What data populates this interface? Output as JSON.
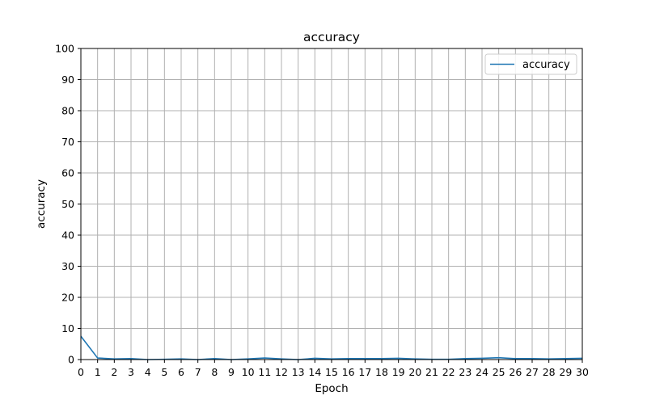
{
  "chart_data": {
    "type": "line",
    "title": "accuracy",
    "xlabel": "Epoch",
    "ylabel": "accuracy",
    "x": [
      0,
      1,
      2,
      3,
      4,
      5,
      6,
      7,
      8,
      9,
      10,
      11,
      12,
      13,
      14,
      15,
      16,
      17,
      18,
      19,
      20,
      21,
      22,
      23,
      24,
      25,
      26,
      27,
      28,
      29,
      30
    ],
    "xlim": [
      0,
      30
    ],
    "ylim": [
      0,
      100
    ],
    "xticks": [
      0,
      1,
      2,
      3,
      4,
      5,
      6,
      7,
      8,
      9,
      10,
      11,
      12,
      13,
      14,
      15,
      16,
      17,
      18,
      19,
      20,
      21,
      22,
      23,
      24,
      25,
      26,
      27,
      28,
      29,
      30
    ],
    "yticks": [
      0,
      10,
      20,
      30,
      40,
      50,
      60,
      70,
      80,
      90,
      100
    ],
    "grid": true,
    "legend_position": "top-right",
    "series": [
      {
        "name": "accuracy",
        "color": "#1f77b4",
        "values": [
          7.5,
          0.5,
          0.2,
          0.3,
          0.0,
          0.1,
          0.2,
          0.0,
          0.3,
          0.0,
          0.2,
          0.5,
          0.2,
          0.0,
          0.4,
          0.2,
          0.3,
          0.3,
          0.3,
          0.4,
          0.2,
          0.1,
          0.1,
          0.3,
          0.4,
          0.6,
          0.3,
          0.3,
          0.2,
          0.3,
          0.4
        ]
      }
    ]
  }
}
